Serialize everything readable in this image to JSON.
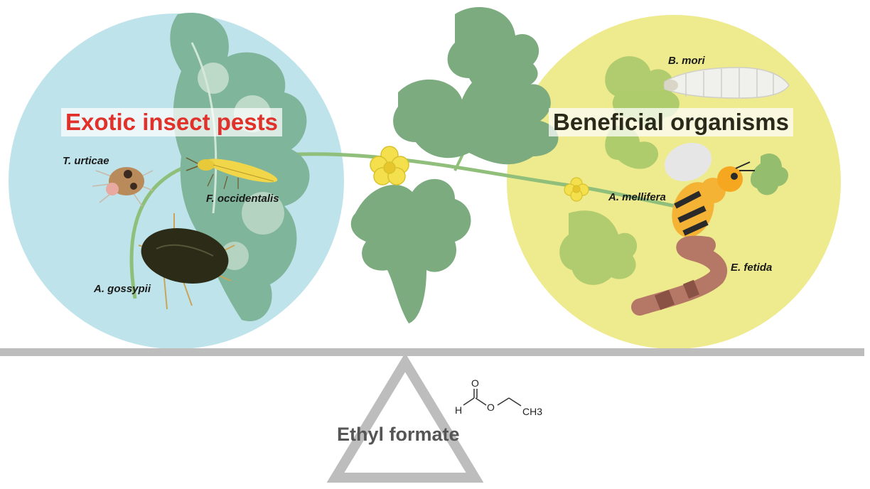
{
  "left_group": {
    "title": "Exotic insect pests",
    "title_color": "#e0312b",
    "circle_color": "#bfe3ea"
  },
  "right_group": {
    "title": "Beneficial organisms",
    "title_color": "#2a2a1a",
    "circle_color": "#eeea8e"
  },
  "species": {
    "t_urticae": "T. urticae",
    "f_occidentalis": "F. occidentalis",
    "a_gossypii": "A. gossypii",
    "b_mori": "B. mori",
    "a_mellifera": "A. mellifera",
    "e_fetida": "E. fetida"
  },
  "compound": {
    "name": "Ethyl formate",
    "atoms": {
      "h": "H",
      "o_carbonyl": "O",
      "o_ester": "O",
      "ch3": "CH3"
    }
  },
  "colors": {
    "leaf": "#7bab7e",
    "stem": "#8fbf7a",
    "flower": "#f4e04d",
    "balance": "#bdbdbd"
  }
}
